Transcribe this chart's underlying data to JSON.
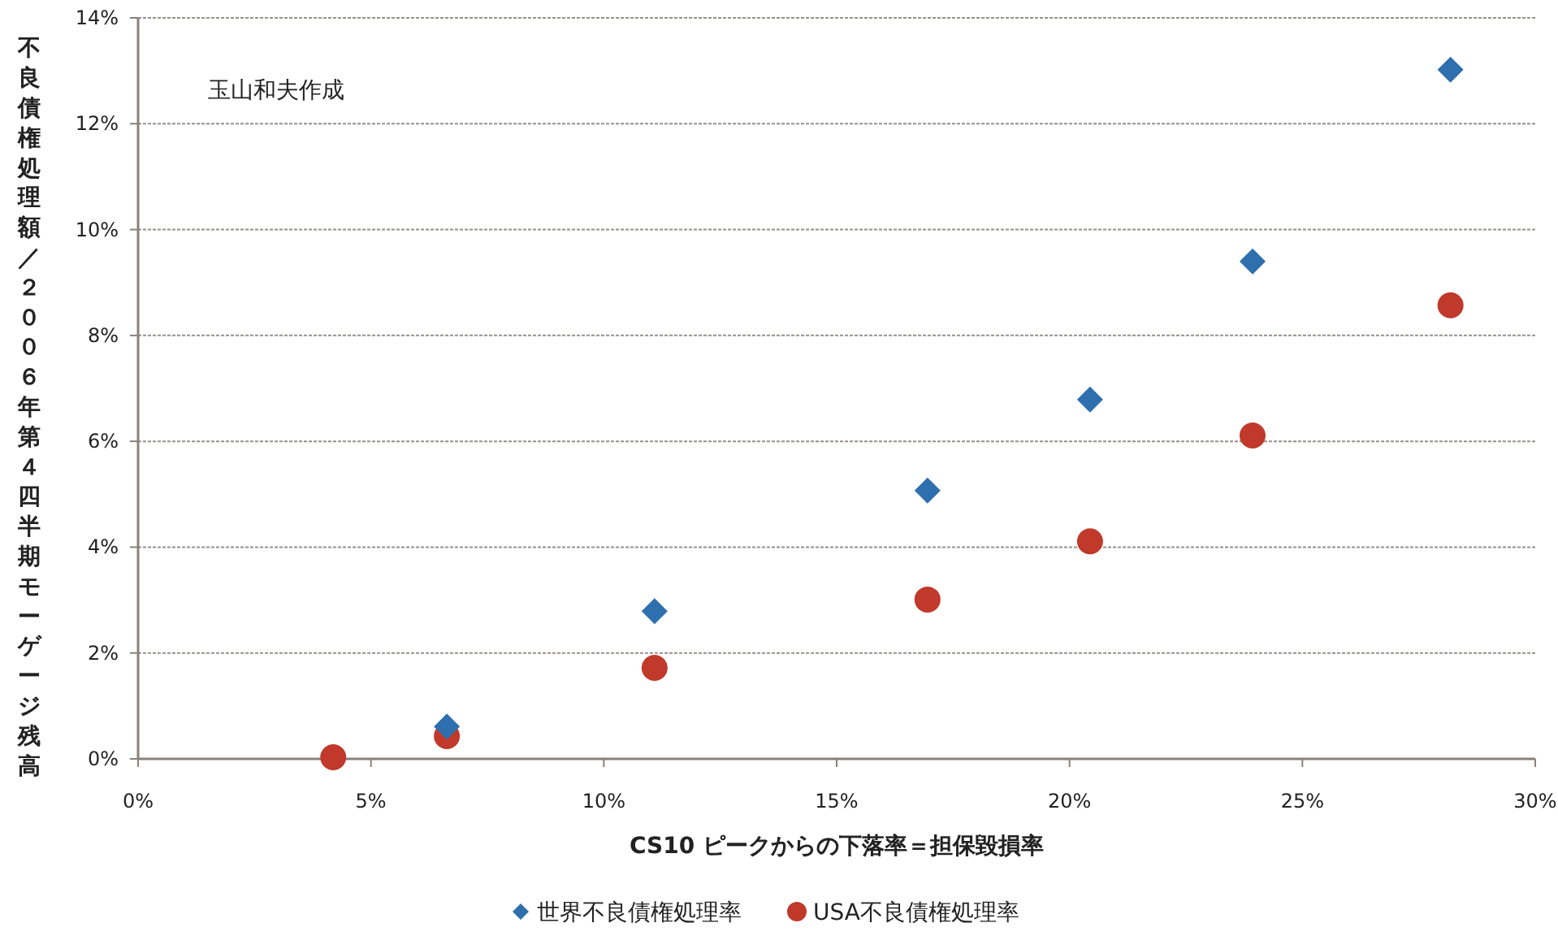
{
  "chart_data": {
    "type": "scatter",
    "xlabel": "CS10 ピークからの下落率＝担保毀損率",
    "ylabel": "不良債権処理額／２００６年第４四半期モーゲージ残高",
    "annotations": [
      "玉山和夫作成"
    ],
    "x": [
      4.19,
      6.63,
      11.09,
      16.95,
      20.44,
      23.93,
      28.18
    ],
    "series": [
      {
        "name": "世界不良債権処理率",
        "color": "#2e6fae",
        "marker": "diamond",
        "values": [
          null,
          0.61,
          2.79,
          5.07,
          6.79,
          9.4,
          13.02
        ]
      },
      {
        "name": "USA不良債権処理率",
        "color": "#c0392b",
        "marker": "circle",
        "values": [
          0.03,
          0.43,
          1.72,
          3.01,
          4.11,
          6.11,
          8.57
        ]
      }
    ],
    "xlim": [
      0,
      30
    ],
    "xticks": [
      {
        "value": 0,
        "label": "0%"
      },
      {
        "value": 5,
        "label": "5%"
      },
      {
        "value": 10,
        "label": "10%"
      },
      {
        "value": 15,
        "label": "15%"
      },
      {
        "value": 20,
        "label": "20%"
      },
      {
        "value": 25,
        "label": "25%"
      },
      {
        "value": 30,
        "label": "30%"
      }
    ],
    "ylim": [
      0,
      14
    ],
    "yticks": [
      {
        "value": 0,
        "label": "0%"
      },
      {
        "value": 2,
        "label": "2%"
      },
      {
        "value": 4,
        "label": "4%"
      },
      {
        "value": 6,
        "label": "6%"
      },
      {
        "value": 8,
        "label": "8%"
      },
      {
        "value": 10,
        "label": "10%"
      },
      {
        "value": 12,
        "label": "12%"
      },
      {
        "value": 14,
        "label": "14%"
      }
    ],
    "grid": "y",
    "legend": "bottom"
  }
}
